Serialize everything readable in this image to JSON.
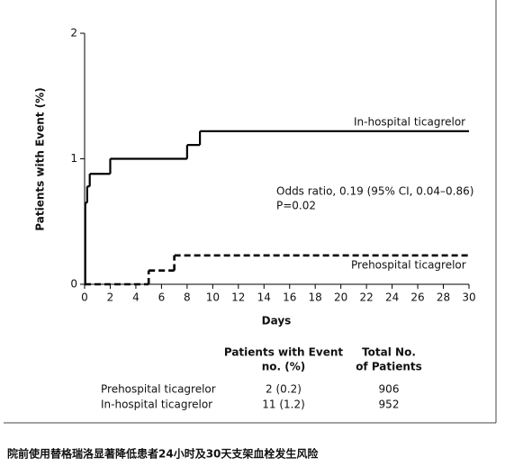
{
  "chart_data": {
    "type": "step",
    "y_label": "Patients with Event (%)",
    "x_label": "Days",
    "xlim": [
      0,
      30
    ],
    "xticks": [
      0,
      2,
      4,
      6,
      8,
      10,
      12,
      14,
      16,
      18,
      20,
      22,
      24,
      26,
      28,
      30
    ],
    "ylim": [
      0,
      2
    ],
    "yticks": [
      0,
      1,
      2
    ],
    "series": [
      {
        "name": "In-hospital ticagrelor",
        "color": "#000000",
        "line_style": "solid",
        "x": [
          0,
          0.05,
          0.2,
          0.4,
          2,
          8,
          9
        ],
        "values": [
          0,
          0.65,
          0.78,
          0.88,
          1.0,
          1.11,
          1.22
        ]
      },
      {
        "name": "Prehospital ticagrelor",
        "color": "#000000",
        "line_style": "dashed",
        "x": [
          0,
          5,
          7
        ],
        "values": [
          0,
          0.11,
          0.23
        ]
      }
    ],
    "annotations": [
      "Odds ratio, 0.19 (95% CI, 0.04–0.86)",
      "P=0.02"
    ]
  },
  "table": {
    "header": [
      [
        "Patients with Event",
        "no. (%)"
      ],
      [
        "Total No.",
        "of Patients"
      ]
    ],
    "rows": [
      [
        "Prehospital ticagrelor",
        "2 (0.2)",
        "906"
      ],
      [
        "In-hospital ticagrelor",
        "11 (1.2)",
        "952"
      ]
    ]
  },
  "caption": "院前使用替格瑞洛显著降低患者24小时及30天支架血栓发生风险"
}
